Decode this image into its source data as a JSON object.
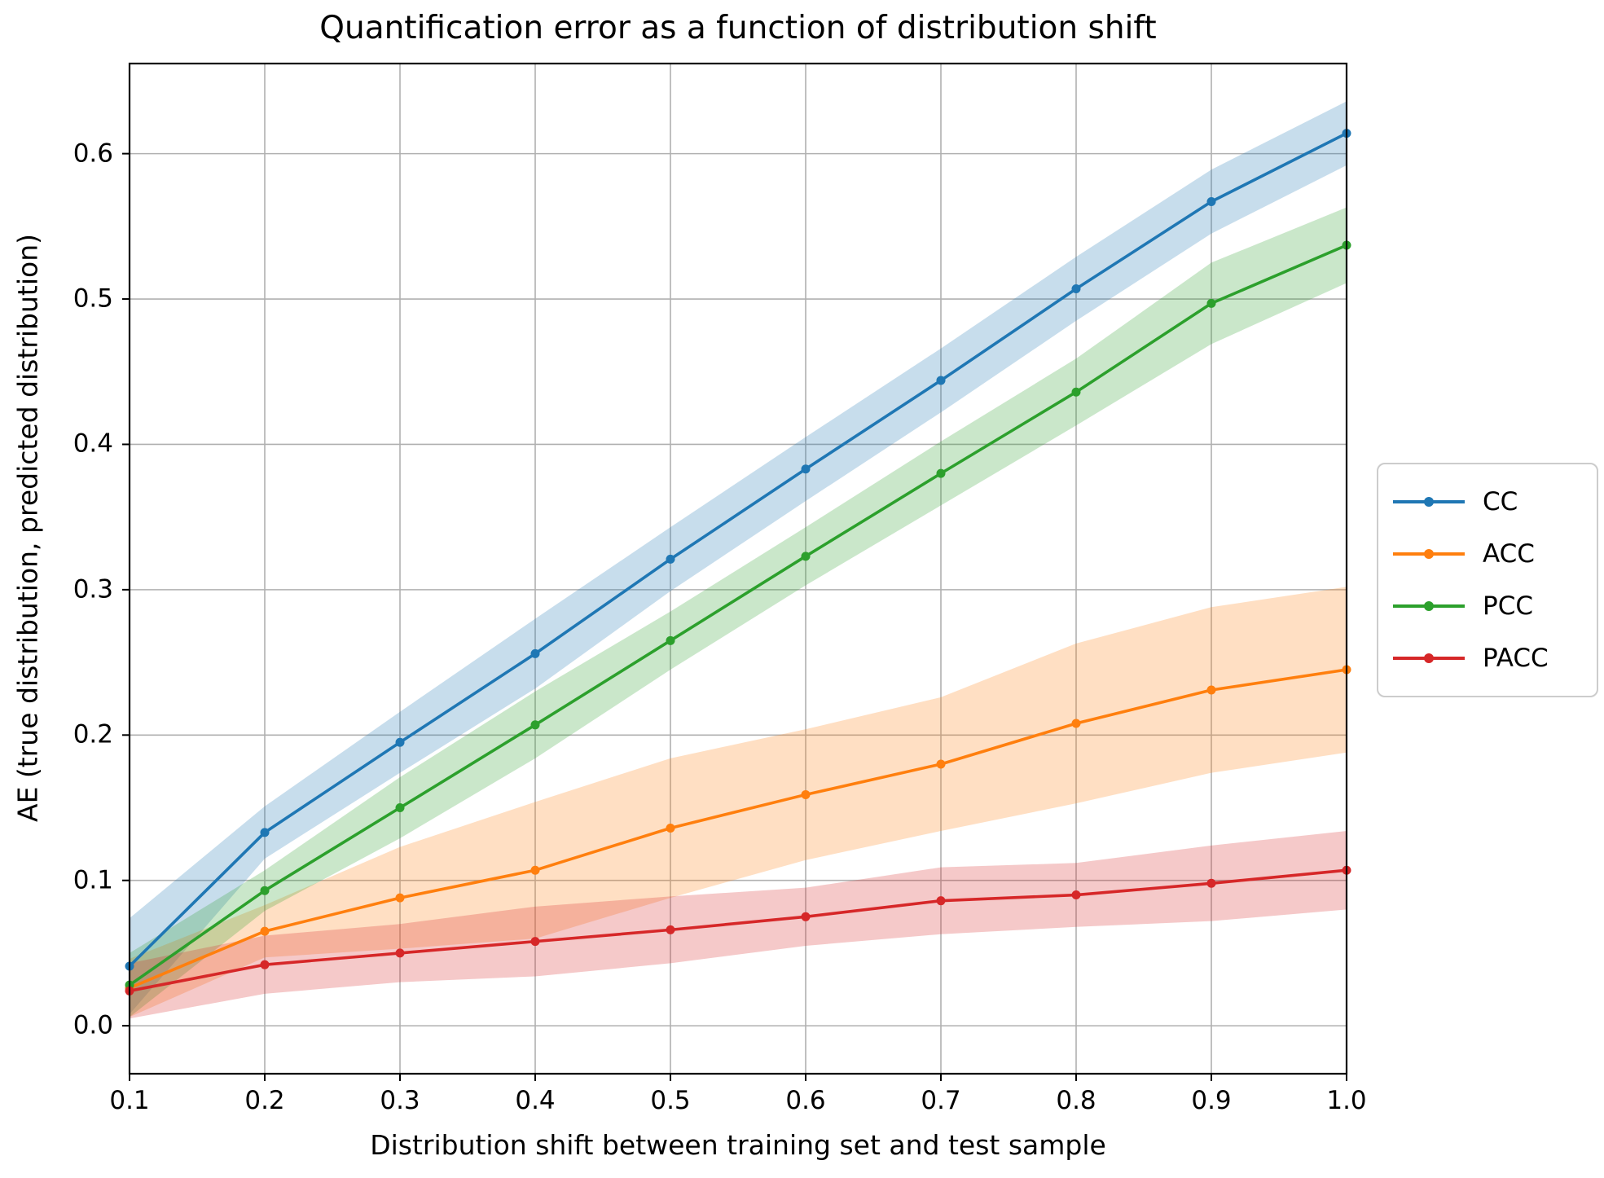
{
  "chart_data": {
    "type": "line",
    "title": "Quantification error as a function of distribution shift",
    "xlabel": "Distribution shift between training set and test sample",
    "ylabel": "AE (true distribution, predicted distribution)",
    "x": [
      0.1,
      0.2,
      0.3,
      0.4,
      0.5,
      0.6,
      0.7,
      0.8,
      0.9,
      1.0
    ],
    "x_tick_labels": [
      "0.1",
      "0.2",
      "0.3",
      "0.4",
      "0.5",
      "0.6",
      "0.7",
      "0.8",
      "0.9",
      "1.0"
    ],
    "y_tick_values": [
      0.0,
      0.1,
      0.2,
      0.3,
      0.4,
      0.5,
      0.6
    ],
    "y_tick_labels": [
      "0.0",
      "0.1",
      "0.2",
      "0.3",
      "0.4",
      "0.5",
      "0.6"
    ],
    "xlim": [
      0.1,
      1.0
    ],
    "ylim": [
      -0.033,
      0.662
    ],
    "grid": true,
    "legend_position": "right-outside",
    "series": [
      {
        "name": "CC",
        "color": "#1f77b4",
        "values": [
          0.041,
          0.133,
          0.195,
          0.256,
          0.321,
          0.383,
          0.444,
          0.507,
          0.567,
          0.614
        ],
        "band_low": [
          0.008,
          0.115,
          0.174,
          0.232,
          0.299,
          0.361,
          0.422,
          0.485,
          0.545,
          0.592
        ],
        "band_high": [
          0.074,
          0.151,
          0.216,
          0.28,
          0.343,
          0.405,
          0.466,
          0.529,
          0.589,
          0.636
        ]
      },
      {
        "name": "ACC",
        "color": "#ff7f0e",
        "values": [
          0.026,
          0.065,
          0.088,
          0.107,
          0.136,
          0.159,
          0.18,
          0.208,
          0.231,
          0.245
        ],
        "band_low": [
          0.006,
          0.047,
          0.053,
          0.06,
          0.088,
          0.114,
          0.134,
          0.153,
          0.174,
          0.188
        ],
        "band_high": [
          0.046,
          0.083,
          0.123,
          0.154,
          0.184,
          0.204,
          0.226,
          0.263,
          0.288,
          0.302
        ]
      },
      {
        "name": "PCC",
        "color": "#2ca02c",
        "values": [
          0.028,
          0.093,
          0.15,
          0.207,
          0.265,
          0.323,
          0.38,
          0.436,
          0.497,
          0.537
        ],
        "band_low": [
          0.006,
          0.079,
          0.129,
          0.184,
          0.245,
          0.303,
          0.358,
          0.413,
          0.469,
          0.511
        ],
        "band_high": [
          0.05,
          0.107,
          0.171,
          0.23,
          0.285,
          0.343,
          0.402,
          0.459,
          0.525,
          0.563
        ]
      },
      {
        "name": "PACC",
        "color": "#d62728",
        "values": [
          0.024,
          0.042,
          0.05,
          0.058,
          0.066,
          0.075,
          0.086,
          0.09,
          0.098,
          0.107
        ],
        "band_low": [
          0.005,
          0.022,
          0.03,
          0.034,
          0.043,
          0.055,
          0.063,
          0.068,
          0.072,
          0.08
        ],
        "band_high": [
          0.043,
          0.062,
          0.07,
          0.082,
          0.089,
          0.095,
          0.109,
          0.112,
          0.124,
          0.134
        ]
      }
    ]
  },
  "style_colors": {
    "grid": "#b0b0b0",
    "spine": "#000000",
    "background": "#ffffff",
    "legend_border": "#cccccc",
    "band_opacity": "0.25"
  }
}
